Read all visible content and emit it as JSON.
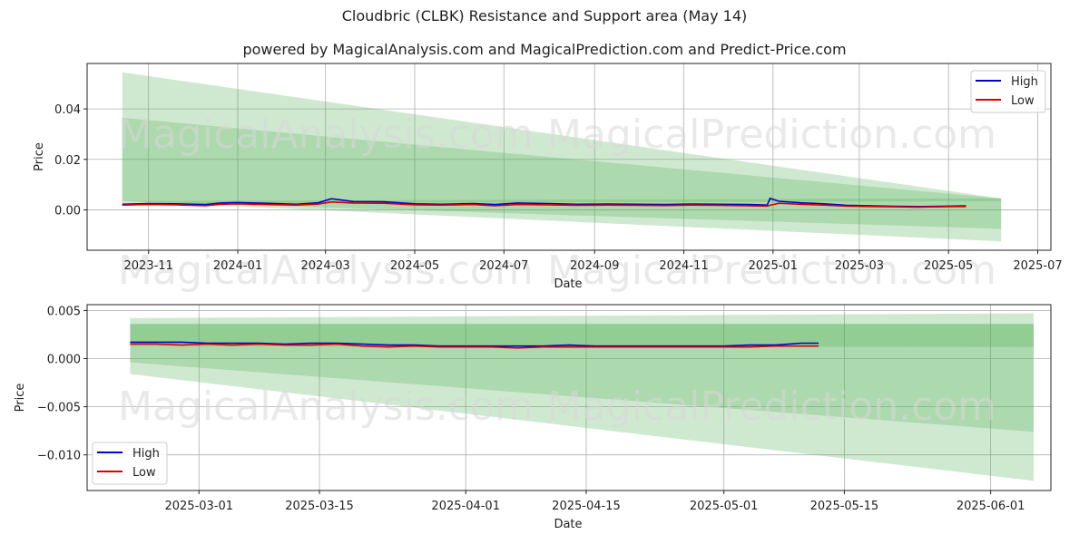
{
  "title": "Cloudbric (CLBK) Resistance and Support area (May 14)",
  "subtitle": "powered by MagicalAnalysis.com and MagicalPrediction.com and Predict-Price.com",
  "watermarks": [
    "MagicalAnalysis.com",
    "MagicalPrediction.com"
  ],
  "colors": {
    "high": "#0000cc",
    "low": "#dd0000",
    "band": "#4caf50",
    "grid": "#b0b0b0"
  },
  "chart_data": [
    {
      "type": "line",
      "xlabel": "Date",
      "ylabel": "Price",
      "xlim": [
        "2023-09-20",
        "2025-07-10"
      ],
      "ylim": [
        -0.016,
        0.058
      ],
      "x_ticks": [
        "2023-11",
        "2024-01",
        "2024-03",
        "2024-05",
        "2024-07",
        "2024-09",
        "2024-11",
        "2025-01",
        "2025-03",
        "2025-05",
        "2025-07"
      ],
      "y_ticks": [
        "0.00",
        "0.02",
        "0.04"
      ],
      "y_tick_values": [
        0.0,
        0.02,
        0.04
      ],
      "legend": [
        "High",
        "Low"
      ],
      "legend_position": "top-right",
      "grid": true,
      "bands": [
        {
          "start": "2023-10-14",
          "end": "2025-06-06",
          "upper": [
            0.0545,
            0.0045
          ],
          "lower": [
            0.0035,
            -0.0125
          ]
        },
        {
          "start": "2023-10-14",
          "end": "2025-06-06",
          "upper": [
            0.0365,
            0.0045
          ],
          "lower": [
            0.0035,
            -0.0075
          ]
        },
        {
          "start": "2023-10-14",
          "end": "2025-06-06",
          "upper": [
            0.0035,
            0.0045
          ],
          "lower": [
            0.0025,
            0.0035
          ]
        }
      ],
      "series": [
        {
          "name": "High",
          "x": [
            "2023-10-14",
            "2023-11-01",
            "2023-11-20",
            "2023-12-10",
            "2023-12-20",
            "2024-01-01",
            "2024-01-20",
            "2024-02-10",
            "2024-02-25",
            "2024-03-05",
            "2024-03-20",
            "2024-04-10",
            "2024-05-01",
            "2024-05-20",
            "2024-06-10",
            "2024-06-25",
            "2024-07-10",
            "2024-08-01",
            "2024-08-20",
            "2024-09-10",
            "2024-10-01",
            "2024-10-20",
            "2024-11-05",
            "2024-11-25",
            "2024-12-15",
            "2024-12-28",
            "2024-12-30",
            "2025-01-05",
            "2025-01-20",
            "2025-02-05",
            "2025-02-20",
            "2025-03-10",
            "2025-03-25",
            "2025-04-10",
            "2025-04-25",
            "2025-05-05",
            "2025-05-13"
          ],
          "y": [
            0.0022,
            0.0025,
            0.0024,
            0.0021,
            0.0027,
            0.0029,
            0.0026,
            0.0022,
            0.0028,
            0.0044,
            0.0033,
            0.0032,
            0.0024,
            0.0022,
            0.0025,
            0.0021,
            0.0027,
            0.0025,
            0.0022,
            0.0023,
            0.0022,
            0.0021,
            0.0023,
            0.0022,
            0.0021,
            0.0019,
            0.0046,
            0.0034,
            0.0028,
            0.0024,
            0.0018,
            0.0016,
            0.0014,
            0.0013,
            0.0014,
            0.0015,
            0.0016
          ]
        },
        {
          "name": "Low",
          "x": [
            "2023-10-14",
            "2023-11-01",
            "2023-11-20",
            "2023-12-10",
            "2023-12-20",
            "2024-01-01",
            "2024-01-20",
            "2024-02-10",
            "2024-02-25",
            "2024-03-05",
            "2024-03-20",
            "2024-04-10",
            "2024-05-01",
            "2024-05-20",
            "2024-06-10",
            "2024-06-25",
            "2024-07-10",
            "2024-08-01",
            "2024-08-20",
            "2024-09-10",
            "2024-10-01",
            "2024-10-20",
            "2024-11-05",
            "2024-11-25",
            "2024-12-15",
            "2024-12-28",
            "2024-12-30",
            "2025-01-05",
            "2025-01-20",
            "2025-02-05",
            "2025-02-20",
            "2025-03-10",
            "2025-03-25",
            "2025-04-10",
            "2025-04-25",
            "2025-05-05",
            "2025-05-13"
          ],
          "y": [
            0.0019,
            0.0021,
            0.002,
            0.0016,
            0.0022,
            0.0024,
            0.0021,
            0.0019,
            0.0023,
            0.0031,
            0.0027,
            0.0026,
            0.002,
            0.0019,
            0.0021,
            0.0016,
            0.0021,
            0.002,
            0.0018,
            0.0019,
            0.0018,
            0.0017,
            0.0019,
            0.0018,
            0.0016,
            0.0015,
            0.0018,
            0.0026,
            0.0022,
            0.0019,
            0.0015,
            0.0013,
            0.0012,
            0.0011,
            0.0012,
            0.0013,
            0.0013
          ]
        }
      ]
    },
    {
      "type": "line",
      "xlabel": "Date",
      "ylabel": "Price",
      "xlim": [
        "2025-02-16",
        "2025-06-08"
      ],
      "ylim": [
        -0.0137,
        0.0056
      ],
      "x_ticks": [
        "2025-03-01",
        "2025-03-15",
        "2025-04-01",
        "2025-04-15",
        "2025-05-01",
        "2025-05-15",
        "2025-06-01"
      ],
      "y_ticks": [
        "0.005",
        "0.000",
        "−0.005",
        "−0.010"
      ],
      "y_tick_values": [
        0.005,
        0.0,
        -0.005,
        -0.01
      ],
      "legend": [
        "High",
        "Low"
      ],
      "legend_position": "bottom-left",
      "grid": true,
      "bands": [
        {
          "start": "2025-02-21",
          "end": "2025-06-06",
          "upper": [
            0.0042,
            0.0047
          ],
          "lower": [
            -0.0016,
            -0.0127
          ]
        },
        {
          "start": "2025-02-21",
          "end": "2025-06-06",
          "upper": [
            0.0036,
            0.0036
          ],
          "lower": [
            -0.0004,
            -0.0076
          ]
        },
        {
          "start": "2025-02-21",
          "end": "2025-06-06",
          "upper": [
            0.0036,
            0.0036
          ],
          "lower": [
            0.0013,
            0.0012
          ]
        }
      ],
      "series": [
        {
          "name": "High",
          "x": [
            "2025-02-21",
            "2025-02-24",
            "2025-02-27",
            "2025-03-02",
            "2025-03-05",
            "2025-03-08",
            "2025-03-11",
            "2025-03-14",
            "2025-03-17",
            "2025-03-20",
            "2025-03-23",
            "2025-03-26",
            "2025-03-29",
            "2025-04-01",
            "2025-04-04",
            "2025-04-07",
            "2025-04-10",
            "2025-04-13",
            "2025-04-16",
            "2025-04-19",
            "2025-04-22",
            "2025-04-25",
            "2025-04-28",
            "2025-05-01",
            "2025-05-04",
            "2025-05-07",
            "2025-05-10",
            "2025-05-12"
          ],
          "y": [
            0.0017,
            0.0017,
            0.0017,
            0.0016,
            0.0016,
            0.0016,
            0.0015,
            0.0016,
            0.0016,
            0.0015,
            0.0014,
            0.0014,
            0.0013,
            0.0013,
            0.0013,
            0.0013,
            0.0013,
            0.0014,
            0.0013,
            0.0013,
            0.0013,
            0.0013,
            0.0013,
            0.0013,
            0.0014,
            0.0014,
            0.0016,
            0.0016
          ]
        },
        {
          "name": "Low",
          "x": [
            "2025-02-21",
            "2025-02-24",
            "2025-02-27",
            "2025-03-02",
            "2025-03-05",
            "2025-03-08",
            "2025-03-11",
            "2025-03-14",
            "2025-03-17",
            "2025-03-20",
            "2025-03-23",
            "2025-03-26",
            "2025-03-29",
            "2025-04-01",
            "2025-04-04",
            "2025-04-07",
            "2025-04-10",
            "2025-04-13",
            "2025-04-16",
            "2025-04-19",
            "2025-04-22",
            "2025-04-25",
            "2025-04-28",
            "2025-05-01",
            "2025-05-04",
            "2025-05-07",
            "2025-05-10",
            "2025-05-12"
          ],
          "y": [
            0.0015,
            0.0015,
            0.0014,
            0.0015,
            0.0014,
            0.0015,
            0.0014,
            0.0014,
            0.0015,
            0.0013,
            0.0012,
            0.0013,
            0.0012,
            0.0012,
            0.0012,
            0.0011,
            0.0012,
            0.0012,
            0.0012,
            0.0012,
            0.0012,
            0.0012,
            0.0012,
            0.0012,
            0.0012,
            0.0013,
            0.0013,
            0.0013
          ]
        }
      ]
    }
  ]
}
